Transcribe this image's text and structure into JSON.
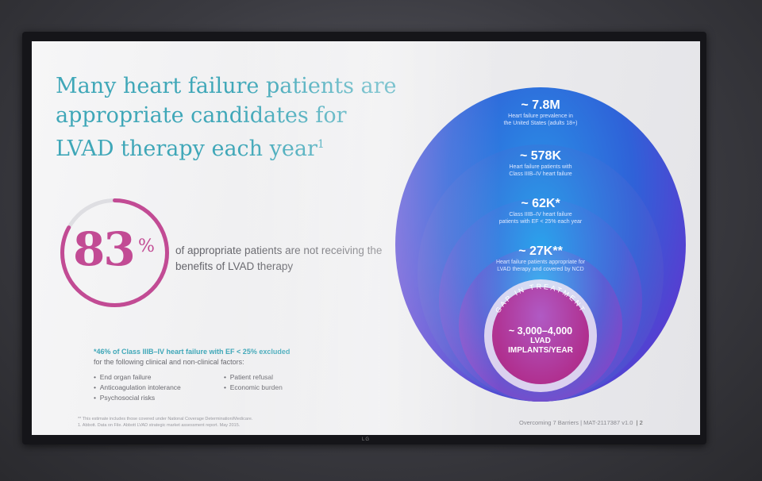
{
  "slide": {
    "title_line1": "Many heart failure patients are",
    "title_line2": "appropriate candidates for",
    "title_line3": "LVAD therapy each year",
    "title_sup": "1",
    "stat": {
      "number": "83",
      "symbol": "%",
      "value_percent": 83,
      "description": "of appropriate patients are not receiving the benefits of LVAD therapy"
    },
    "note_head": "*46% of Class IIIB–IV heart failure with EF < 25% excluded",
    "note_sub": "for the following clinical and non-clinical factors:",
    "factors": [
      "End organ failure",
      "Anticoagulation intolerance",
      "Psychosocial risks",
      "Patient refusal",
      "Economic burden"
    ],
    "footnote_1": "** This estimate includes those covered under National Coverage Determination/Medicare.",
    "footnote_2": "1. Abbott. Data on File. Abbott LVAD strategic market assessment report. May 2015.",
    "footer_left": "Overcoming 7 Barriers | MAT-2117387 v1.0",
    "footer_page": "| 2"
  },
  "funnel": {
    "level1": {
      "value": "~ 7.8M",
      "label1": "Heart failure prevalence in",
      "label2": "the United States (adults 18+)"
    },
    "level2": {
      "value": "~ 578K",
      "label1": "Heart failure patients with",
      "label2": "Class IIIB–IV heart failure"
    },
    "level3": {
      "value": "~ 62K*",
      "label1": "Class IIIB–IV heart failure",
      "label2": "patients with EF < 25% each year"
    },
    "level4": {
      "value": "~ 27K**",
      "label1": "Heart failure patients appropriate for",
      "label2": "LVAD therapy and covered by NCD"
    },
    "gap_label": "GAP IN TREATMENT",
    "inner_value": "~ 3,000–4,000",
    "inner_label1": "LVAD",
    "inner_label2": "IMPLANTS/YEAR"
  },
  "colors": {
    "title": "#3fa7b8",
    "accent": "#c24b94"
  },
  "tv_brand": "LG"
}
